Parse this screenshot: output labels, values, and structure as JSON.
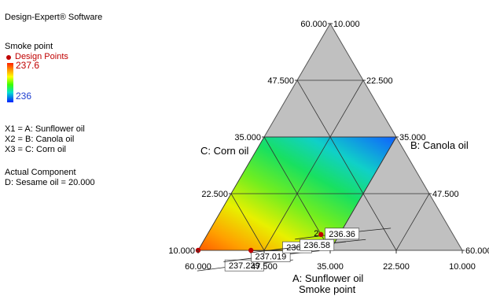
{
  "software": "Design-Expert® Software",
  "response_name": "Smoke point",
  "design_points_label": "Design Points",
  "scale_high": "237.6",
  "scale_low": "236",
  "factors": [
    "X1 = A: Sunflower oil",
    "X2 = B: Canola oil",
    "X3 = C: Corn oil"
  ],
  "actual_component_title": "Actual Component",
  "actual_component": "D: Sesame oil = 20.000",
  "colors": {
    "design_point": "#c00000",
    "high": "#ff2000",
    "low": "#0020ff",
    "triangle": "#c0c0c0"
  },
  "chart_data": {
    "type": "ternary-contour",
    "title": "Smoke point",
    "axes": {
      "A": {
        "label": "A: Sunflower oil",
        "range": [
          10,
          60
        ],
        "ticks": [
          "60.000",
          "47.500",
          "35.000",
          "22.500",
          "10.000"
        ]
      },
      "B": {
        "label": "B: Canola oil",
        "range": [
          10,
          60
        ],
        "ticks": [
          "10.000",
          "22.500",
          "35.000",
          "47.500",
          "60.000"
        ]
      },
      "C": {
        "label": "C: Corn oil",
        "range": [
          10,
          60
        ],
        "ticks": [
          "60.000",
          "47.500",
          "35.000",
          "22.500",
          "10.000"
        ]
      }
    },
    "constraint": {
      "A_max": 60,
      "C_max": 35
    },
    "contours": [
      {
        "value": "237.239",
        "A": 53,
        "B": 20.5
      },
      {
        "value": "237.019",
        "A": 47,
        "B": 24.5
      },
      {
        "value": "236.8",
        "A": 41,
        "B": 28.5
      },
      {
        "value": "236.58",
        "A": 37,
        "B": 32
      },
      {
        "value": "236.36",
        "A": 31,
        "B": 35.5
      }
    ],
    "design_points": [
      {
        "A": 60,
        "B": 10,
        "C": 10
      },
      {
        "A": 50,
        "B": 20,
        "C": 10
      },
      {
        "A": 35,
        "B": 31.5,
        "C": 13.5,
        "count": "2"
      }
    ]
  }
}
